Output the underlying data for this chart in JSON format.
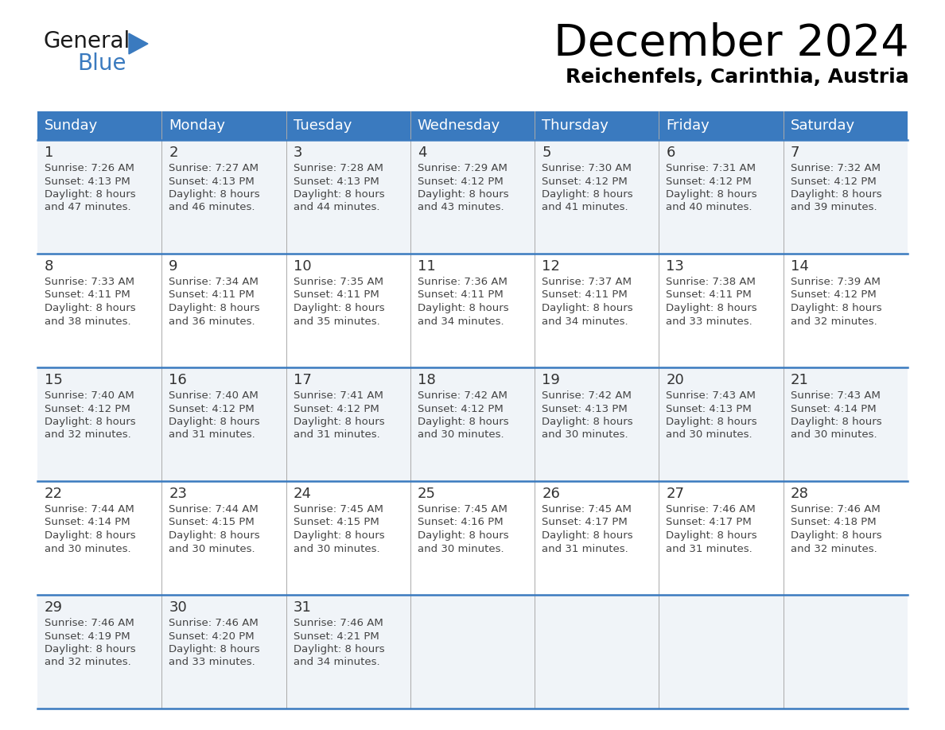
{
  "title": "December 2024",
  "subtitle": "Reichenfels, Carinthia, Austria",
  "days_of_week": [
    "Sunday",
    "Monday",
    "Tuesday",
    "Wednesday",
    "Thursday",
    "Friday",
    "Saturday"
  ],
  "header_bg": "#3a7abf",
  "header_text_color": "#ffffff",
  "row_bg_light": "#f0f4f8",
  "row_bg_white": "#ffffff",
  "border_color": "#3a7abf",
  "day_number_color": "#333333",
  "cell_text_color": "#444444",
  "weeks": [
    [
      {
        "day": 1,
        "sunrise": "7:26 AM",
        "sunset": "4:13 PM",
        "daylight": "8 hours\nand 47 minutes."
      },
      {
        "day": 2,
        "sunrise": "7:27 AM",
        "sunset": "4:13 PM",
        "daylight": "8 hours\nand 46 minutes."
      },
      {
        "day": 3,
        "sunrise": "7:28 AM",
        "sunset": "4:13 PM",
        "daylight": "8 hours\nand 44 minutes."
      },
      {
        "day": 4,
        "sunrise": "7:29 AM",
        "sunset": "4:12 PM",
        "daylight": "8 hours\nand 43 minutes."
      },
      {
        "day": 5,
        "sunrise": "7:30 AM",
        "sunset": "4:12 PM",
        "daylight": "8 hours\nand 41 minutes."
      },
      {
        "day": 6,
        "sunrise": "7:31 AM",
        "sunset": "4:12 PM",
        "daylight": "8 hours\nand 40 minutes."
      },
      {
        "day": 7,
        "sunrise": "7:32 AM",
        "sunset": "4:12 PM",
        "daylight": "8 hours\nand 39 minutes."
      }
    ],
    [
      {
        "day": 8,
        "sunrise": "7:33 AM",
        "sunset": "4:11 PM",
        "daylight": "8 hours\nand 38 minutes."
      },
      {
        "day": 9,
        "sunrise": "7:34 AM",
        "sunset": "4:11 PM",
        "daylight": "8 hours\nand 36 minutes."
      },
      {
        "day": 10,
        "sunrise": "7:35 AM",
        "sunset": "4:11 PM",
        "daylight": "8 hours\nand 35 minutes."
      },
      {
        "day": 11,
        "sunrise": "7:36 AM",
        "sunset": "4:11 PM",
        "daylight": "8 hours\nand 34 minutes."
      },
      {
        "day": 12,
        "sunrise": "7:37 AM",
        "sunset": "4:11 PM",
        "daylight": "8 hours\nand 34 minutes."
      },
      {
        "day": 13,
        "sunrise": "7:38 AM",
        "sunset": "4:11 PM",
        "daylight": "8 hours\nand 33 minutes."
      },
      {
        "day": 14,
        "sunrise": "7:39 AM",
        "sunset": "4:12 PM",
        "daylight": "8 hours\nand 32 minutes."
      }
    ],
    [
      {
        "day": 15,
        "sunrise": "7:40 AM",
        "sunset": "4:12 PM",
        "daylight": "8 hours\nand 32 minutes."
      },
      {
        "day": 16,
        "sunrise": "7:40 AM",
        "sunset": "4:12 PM",
        "daylight": "8 hours\nand 31 minutes."
      },
      {
        "day": 17,
        "sunrise": "7:41 AM",
        "sunset": "4:12 PM",
        "daylight": "8 hours\nand 31 minutes."
      },
      {
        "day": 18,
        "sunrise": "7:42 AM",
        "sunset": "4:12 PM",
        "daylight": "8 hours\nand 30 minutes."
      },
      {
        "day": 19,
        "sunrise": "7:42 AM",
        "sunset": "4:13 PM",
        "daylight": "8 hours\nand 30 minutes."
      },
      {
        "day": 20,
        "sunrise": "7:43 AM",
        "sunset": "4:13 PM",
        "daylight": "8 hours\nand 30 minutes."
      },
      {
        "day": 21,
        "sunrise": "7:43 AM",
        "sunset": "4:14 PM",
        "daylight": "8 hours\nand 30 minutes."
      }
    ],
    [
      {
        "day": 22,
        "sunrise": "7:44 AM",
        "sunset": "4:14 PM",
        "daylight": "8 hours\nand 30 minutes."
      },
      {
        "day": 23,
        "sunrise": "7:44 AM",
        "sunset": "4:15 PM",
        "daylight": "8 hours\nand 30 minutes."
      },
      {
        "day": 24,
        "sunrise": "7:45 AM",
        "sunset": "4:15 PM",
        "daylight": "8 hours\nand 30 minutes."
      },
      {
        "day": 25,
        "sunrise": "7:45 AM",
        "sunset": "4:16 PM",
        "daylight": "8 hours\nand 30 minutes."
      },
      {
        "day": 26,
        "sunrise": "7:45 AM",
        "sunset": "4:17 PM",
        "daylight": "8 hours\nand 31 minutes."
      },
      {
        "day": 27,
        "sunrise": "7:46 AM",
        "sunset": "4:17 PM",
        "daylight": "8 hours\nand 31 minutes."
      },
      {
        "day": 28,
        "sunrise": "7:46 AM",
        "sunset": "4:18 PM",
        "daylight": "8 hours\nand 32 minutes."
      }
    ],
    [
      {
        "day": 29,
        "sunrise": "7:46 AM",
        "sunset": "4:19 PM",
        "daylight": "8 hours\nand 32 minutes."
      },
      {
        "day": 30,
        "sunrise": "7:46 AM",
        "sunset": "4:20 PM",
        "daylight": "8 hours\nand 33 minutes."
      },
      {
        "day": 31,
        "sunrise": "7:46 AM",
        "sunset": "4:21 PM",
        "daylight": "8 hours\nand 34 minutes."
      },
      null,
      null,
      null,
      null
    ]
  ],
  "logo_text1": "General",
  "logo_text2": "Blue",
  "logo_color1": "#1a1a1a",
  "logo_color2": "#3a7abf",
  "logo_triangle_color": "#3a7abf",
  "title_fontsize": 40,
  "subtitle_fontsize": 18,
  "header_fontsize": 13,
  "day_num_fontsize": 13,
  "cell_fontsize": 9.5
}
